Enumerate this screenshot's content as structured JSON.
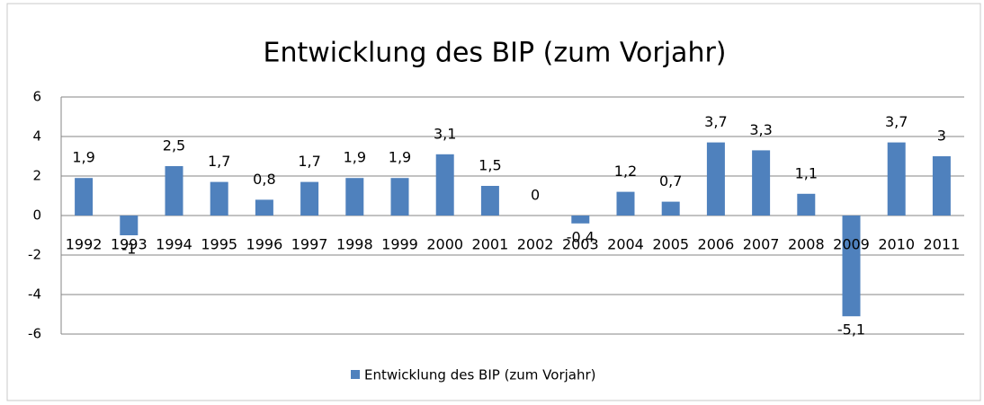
{
  "chart_data": {
    "type": "bar",
    "title": "Entwicklung des BIP (zum Vorjahr)",
    "categories": [
      "1992",
      "1993",
      "1994",
      "1995",
      "1996",
      "1997",
      "1998",
      "1999",
      "2000",
      "2001",
      "2002",
      "2003",
      "2004",
      "2005",
      "2006",
      "2007",
      "2008",
      "2009",
      "2010",
      "2011"
    ],
    "series": [
      {
        "name": "Entwicklung des BIP (zum Vorjahr)",
        "color": "#4f81bd",
        "values": [
          1.9,
          -1,
          2.5,
          1.7,
          0.8,
          1.7,
          1.9,
          1.9,
          3.1,
          1.5,
          0,
          -0.4,
          1.2,
          0.7,
          3.7,
          3.3,
          1.1,
          -5.1,
          3.7,
          3
        ],
        "value_labels": [
          "1,9",
          "-1",
          "2,5",
          "1,7",
          "0,8",
          "1,7",
          "1,9",
          "1,9",
          "3,1",
          "1,5",
          "0",
          "-0,4",
          "1,2",
          "0,7",
          "3,7",
          "3,3",
          "1,1",
          "-5,1",
          "3,7",
          "3"
        ]
      }
    ],
    "ylim": [
      -6,
      6
    ],
    "yticks": [
      -6,
      -4,
      -2,
      0,
      2,
      4,
      6
    ],
    "grid": true,
    "legend": "bottom"
  }
}
